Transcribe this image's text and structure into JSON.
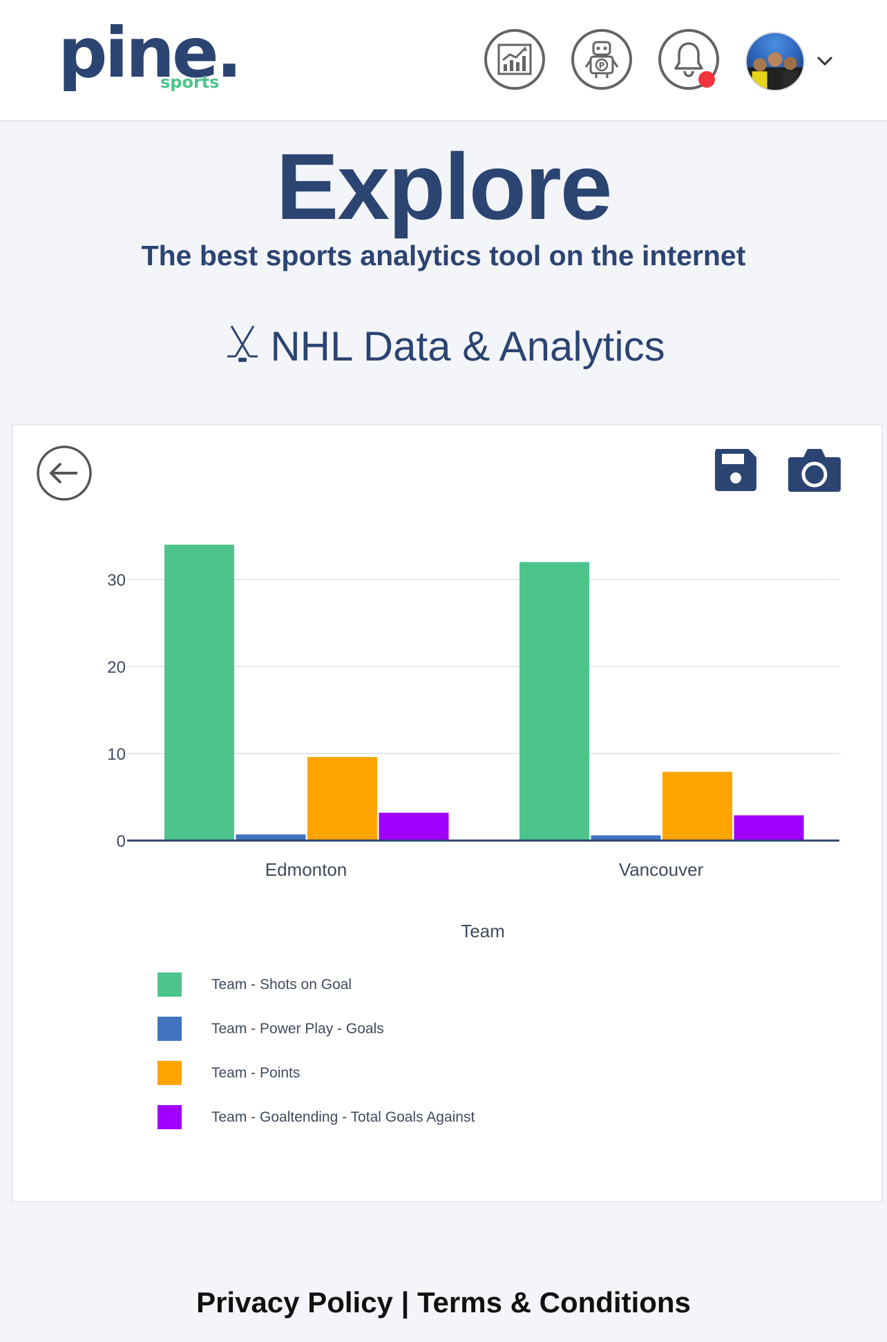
{
  "header": {
    "logo_main": "pine.",
    "logo_sub": "sports",
    "icons": [
      "chart-icon",
      "robot-icon",
      "bell-icon"
    ],
    "notification_color": "#f2353d"
  },
  "page": {
    "title": "Explore",
    "subtitle": "The best sports analytics tool on the internet",
    "section_title": "NHL Data & Analytics"
  },
  "colors": {
    "brand": "#2b4472",
    "accent": "#4cc38a"
  },
  "chart_data": {
    "type": "bar",
    "categories": [
      "Edmonton",
      "Vancouver"
    ],
    "xlabel": "Team",
    "ylabel": "",
    "ylim": [
      0,
      35
    ],
    "yticks": [
      0,
      10,
      20,
      30
    ],
    "grid": true,
    "legend_placement": "bottom-left",
    "series": [
      {
        "name": "Team - Shots on Goal",
        "values": [
          34,
          32
        ],
        "color": "#4dc48c"
      },
      {
        "name": "Team - Power Play - Goals",
        "values": [
          0.7,
          0.6
        ],
        "color": "#4174c0"
      },
      {
        "name": "Team - Points",
        "values": [
          9.6,
          7.9
        ],
        "color": "#ffa400"
      },
      {
        "name": "Team - Goaltending - Total Goals Against",
        "values": [
          3.2,
          2.9
        ],
        "color": "#a100ff"
      }
    ]
  },
  "footer": {
    "privacy": "Privacy Policy",
    "separator": " | ",
    "terms": "Terms & Conditions"
  }
}
